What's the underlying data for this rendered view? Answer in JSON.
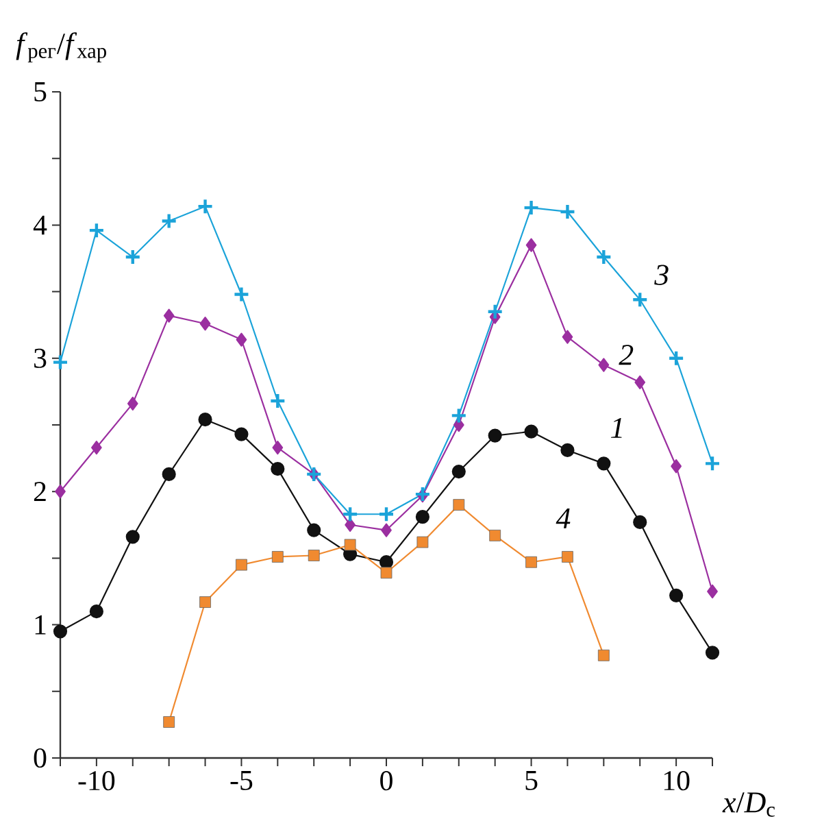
{
  "chart_data": {
    "type": "line",
    "ylabel": "*f*$_{рег}$/*f*$_{хар}$",
    "xlabel": "*x*/*D*$_{c}$",
    "x": [
      -11.25,
      -10,
      -8.75,
      -7.5,
      -6.25,
      -5,
      -3.75,
      -2.5,
      -1.25,
      0,
      1.25,
      2.5,
      3.75,
      5,
      6.25,
      7.5,
      8.75,
      10,
      11.25
    ],
    "series": [
      {
        "name": "1",
        "color": "#111111",
        "marker": "circle",
        "values": [
          0.95,
          1.1,
          1.66,
          2.13,
          2.54,
          2.43,
          2.17,
          1.71,
          1.53,
          1.47,
          1.81,
          2.15,
          2.42,
          2.45,
          2.31,
          2.21,
          1.77,
          1.22,
          0.79
        ]
      },
      {
        "name": "2",
        "color": "#9b2fa0",
        "marker": "diamond",
        "values": [
          2.0,
          2.33,
          2.66,
          3.32,
          3.26,
          3.14,
          2.33,
          2.13,
          1.75,
          1.71,
          1.97,
          2.5,
          3.31,
          3.85,
          3.16,
          2.95,
          2.82,
          2.19,
          1.25
        ]
      },
      {
        "name": "3",
        "color": "#1ba3d9",
        "marker": "cross",
        "values": [
          2.97,
          3.96,
          3.76,
          4.03,
          4.14,
          3.48,
          2.68,
          2.13,
          1.83,
          1.83,
          1.98,
          2.57,
          3.35,
          4.13,
          4.1,
          3.76,
          3.44,
          3.0,
          2.21
        ]
      },
      {
        "name": "4",
        "color": "#f08a30",
        "marker": "square",
        "x": [
          -7.5,
          -6.25,
          -5,
          -3.75,
          -2.5,
          -1.25,
          0,
          1.25,
          2.5,
          3.75,
          5,
          6.25,
          7.5
        ],
        "values": [
          0.27,
          1.17,
          1.45,
          1.51,
          1.52,
          1.6,
          1.39,
          1.62,
          1.9,
          1.67,
          1.47,
          1.51,
          0.77
        ]
      }
    ],
    "xlim": [
      -11.25,
      11.25
    ],
    "ylim": [
      0,
      5
    ],
    "xticks": [
      {
        "value": -11.25,
        "label": null
      },
      -10,
      {
        "value": -8.75,
        "label": null
      },
      {
        "value": -7.5,
        "label": null
      },
      {
        "value": -6.25,
        "label": null
      },
      -5,
      {
        "value": -3.75,
        "label": null
      },
      {
        "value": -2.5,
        "label": null
      },
      {
        "value": -1.25,
        "label": null
      },
      0,
      {
        "value": 1.25,
        "label": null
      },
      {
        "value": 2.5,
        "label": null
      },
      {
        "value": 3.75,
        "label": null
      },
      5,
      {
        "value": 6.25,
        "label": null
      },
      {
        "value": 7.5,
        "label": null
      },
      {
        "value": 8.75,
        "label": null
      },
      10,
      {
        "value": 11.25,
        "label": null
      }
    ],
    "yticks": [
      0,
      {
        "value": 0.5,
        "label": null
      },
      1,
      {
        "value": 1.5,
        "label": null
      },
      2,
      {
        "value": 2.5,
        "label": null
      },
      3,
      {
        "value": 3.5,
        "label": null
      },
      4,
      {
        "value": 4.5,
        "label": null
      },
      5
    ],
    "line_style": "solid"
  }
}
